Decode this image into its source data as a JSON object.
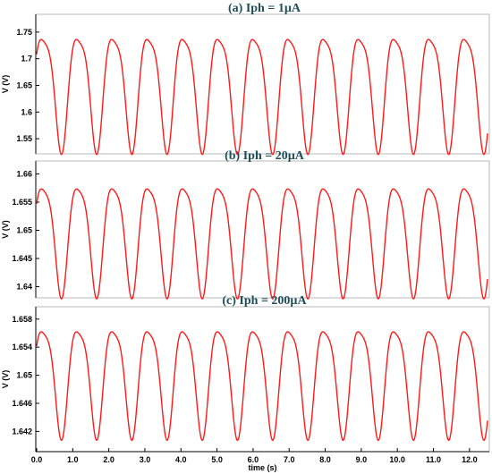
{
  "chart_data": [
    {
      "type": "line",
      "title": "(a) Iph = 1µA",
      "ylabel": "V (V)",
      "xlabel": "",
      "xlim": [
        0,
        12.5
      ],
      "ylim": [
        1.525,
        1.78
      ],
      "yticks": [
        1.55,
        1.6,
        1.65,
        1.7,
        1.75
      ],
      "ytick_labels": [
        "1.55",
        "1.6",
        "1.65",
        "1.7",
        "1.75"
      ],
      "grid": false,
      "series": [
        {
          "color": "#ff1a1a",
          "waveform": {
            "offset": 1.65,
            "fundamental_amplitude": 0.106,
            "second_harmonic_amplitude": 0.024,
            "period_s": 0.976,
            "points": 1400
          }
        }
      ]
    },
    {
      "type": "line",
      "title": "(b) Iph = 20µA",
      "ylabel": "V (V)",
      "xlabel": "",
      "xlim": [
        0,
        12.5
      ],
      "ylim": [
        1.6385,
        1.6615
      ],
      "yticks": [
        1.64,
        1.645,
        1.65,
        1.655,
        1.66
      ],
      "ytick_labels": [
        "1.64",
        "1.645",
        "1.65",
        "1.655",
        "1.66"
      ],
      "grid": false,
      "series": [
        {
          "color": "#ff1a1a",
          "waveform": {
            "offset": 1.6495,
            "fundamental_amplitude": 0.0096,
            "second_harmonic_amplitude": 0.0021,
            "period_s": 0.976,
            "points": 1400
          }
        }
      ]
    },
    {
      "type": "line",
      "title": "(c) Iph = 200µA",
      "ylabel": "V (V)",
      "xlabel": "time (s)",
      "xlim": [
        0,
        12.5
      ],
      "ylim": [
        1.6395,
        1.6595
      ],
      "yticks": [
        1.642,
        1.646,
        1.65,
        1.654,
        1.658
      ],
      "ytick_labels": [
        "1.642",
        "1.646",
        "1.65",
        "1.654",
        "1.658"
      ],
      "xticks": [
        0,
        1,
        2,
        3,
        4,
        5,
        6,
        7,
        8,
        9,
        10,
        11,
        12
      ],
      "xtick_labels": [
        "0.0",
        "1.0",
        "2.0",
        "3.0",
        "4.0",
        "5.0",
        "6.0",
        "7.0",
        "8.0",
        "9.0",
        "10.0",
        "11.0",
        "12.0"
      ],
      "grid": false,
      "series": [
        {
          "color": "#ff1a1a",
          "waveform": {
            "offset": 1.65,
            "fundamental_amplitude": 0.0076,
            "second_harmonic_amplitude": 0.0017,
            "period_s": 0.976,
            "points": 1400
          }
        }
      ]
    }
  ]
}
